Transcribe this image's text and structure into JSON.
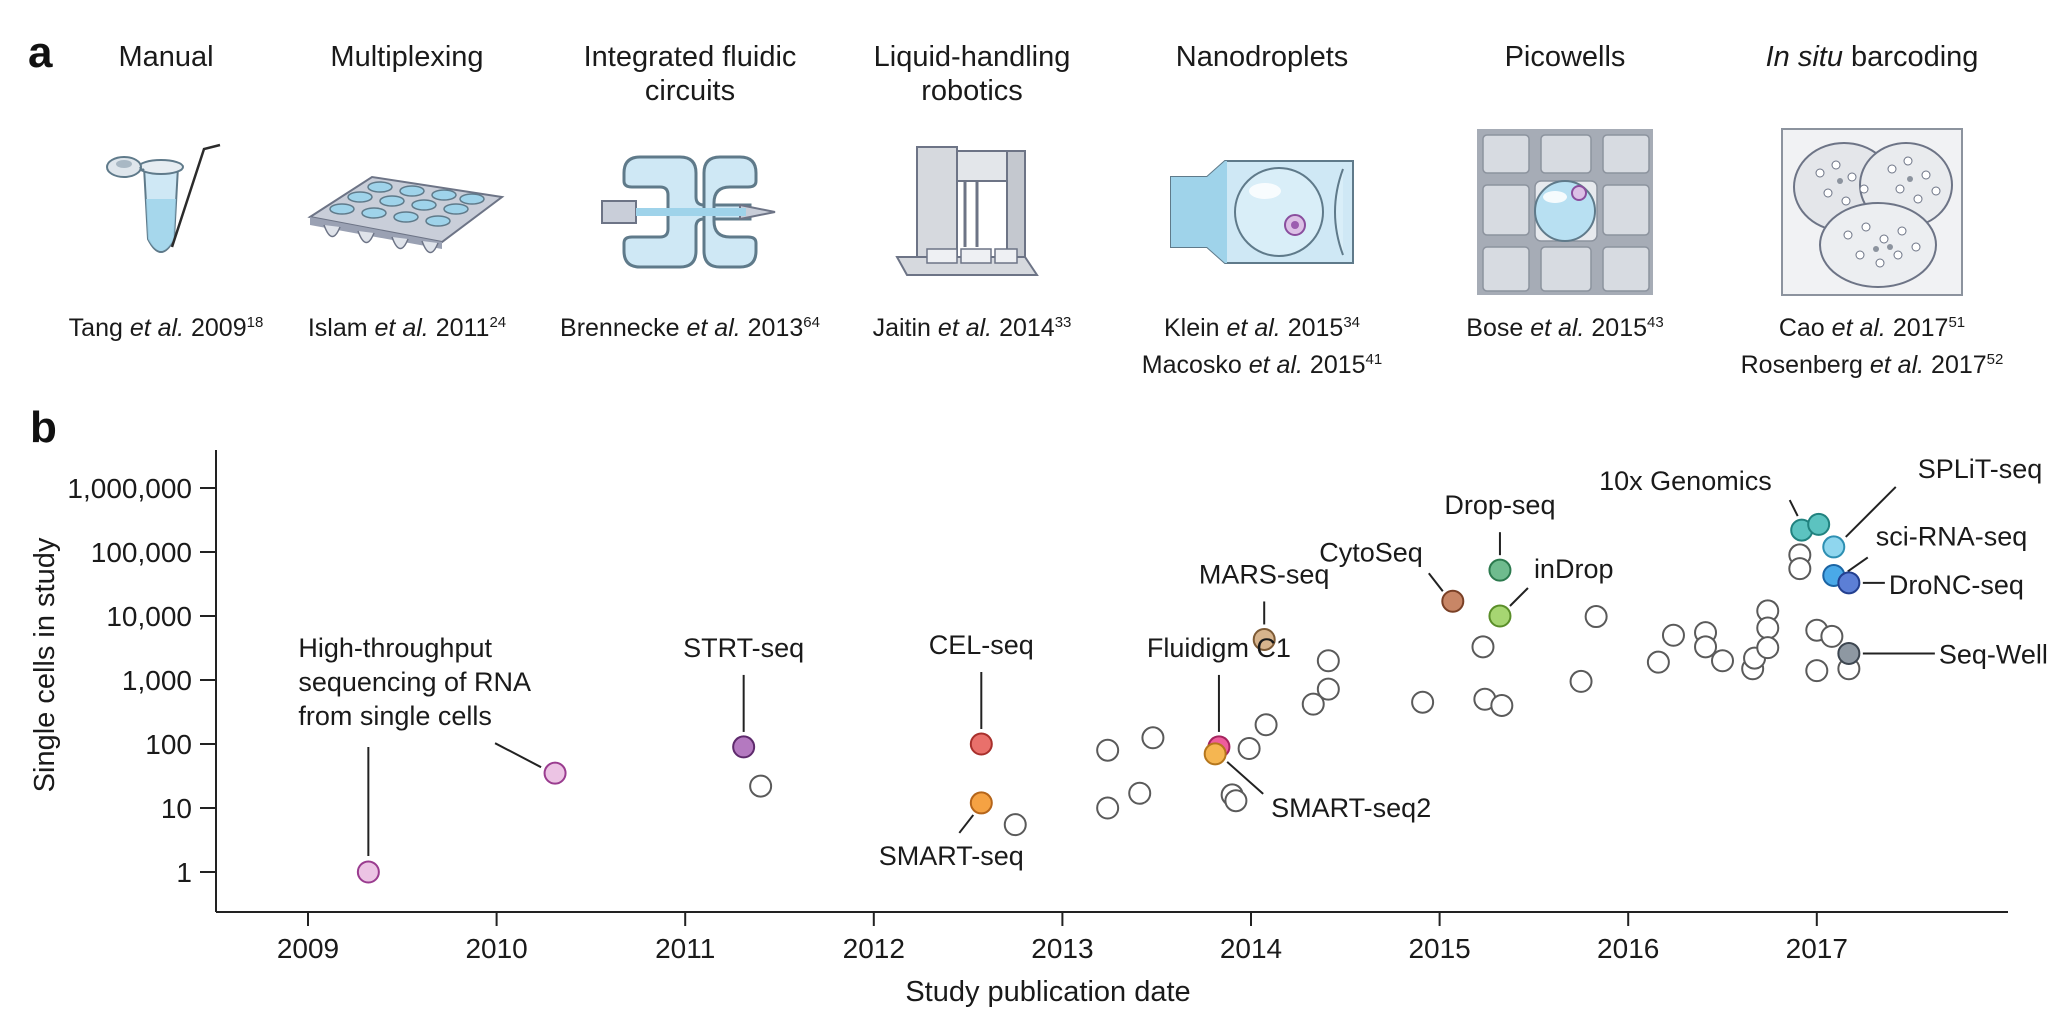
{
  "panel_a": {
    "letter": "a",
    "methods": [
      {
        "title_html": "Manual",
        "icon": "tube-icon",
        "refs": [
          {
            "author": "Tang",
            "etal": "et al.",
            "year": "2009",
            "sup": "18"
          }
        ]
      },
      {
        "title_html": "Multiplexing",
        "icon": "multiwell-plate-icon",
        "refs": [
          {
            "author": "Islam",
            "etal": "et al.",
            "year": "2011",
            "sup": "24"
          }
        ]
      },
      {
        "title_html": "Integrated fluidic<br>circuits",
        "icon": "fluidic-circuit-icon",
        "refs": [
          {
            "author": "Brennecke",
            "etal": "et al.",
            "year": "2013",
            "sup": "64"
          }
        ]
      },
      {
        "title_html": "Liquid-handling<br>robotics",
        "icon": "robot-icon",
        "refs": [
          {
            "author": "Jaitin",
            "etal": "et al.",
            "year": "2014",
            "sup": "33"
          }
        ]
      },
      {
        "title_html": "Nanodroplets",
        "icon": "droplet-channel-icon",
        "refs": [
          {
            "author": "Klein",
            "etal": "et al.",
            "year": "2015",
            "sup": "34"
          },
          {
            "author": "Macosko",
            "etal": "et al.",
            "year": "2015",
            "sup": "41"
          }
        ]
      },
      {
        "title_html": "Picowells",
        "icon": "picowell-icon",
        "refs": [
          {
            "author": "Bose",
            "etal": "et al.",
            "year": "2015",
            "sup": "43"
          }
        ]
      },
      {
        "title_html": "<i>In situ</i> barcoding",
        "icon": "cells-barcoding-icon",
        "refs": [
          {
            "author": "Cao",
            "etal": "et al.",
            "year": "2017",
            "sup": "51"
          },
          {
            "author": "Rosenberg",
            "etal": "et al.",
            "year": "2017",
            "sup": "52"
          }
        ]
      }
    ]
  },
  "chart_data": {
    "panel_letter": "b",
    "type": "scatter",
    "xlabel": "Study publication date",
    "ylabel": "Single cells in study",
    "x_scale": "linear",
    "y_scale": "log",
    "xlim": [
      2008.6,
      2018.1
    ],
    "ylim": [
      0.5,
      3000000
    ],
    "x_ticks": [
      2009,
      2010,
      2011,
      2012,
      2013,
      2014,
      2015,
      2016,
      2017
    ],
    "y_ticks": [
      1,
      10,
      100,
      1000,
      10000,
      100000,
      1000000
    ],
    "y_tick_labels": [
      "1",
      "10",
      "100",
      "1,000",
      "10,000",
      "100,000",
      "1,000,000"
    ],
    "grid": false,
    "colors": {
      "open_marker_fill": "#ffffff",
      "open_marker_stroke": "#5a5a5a",
      "axis": "#222222"
    },
    "highlighted": [
      {
        "label": "High-throughput\nsequencing of RNA\nfrom single cells",
        "x": 2009.32,
        "y": 1,
        "fill": "#ecc4e4",
        "stroke": "#9a3c8f"
      },
      {
        "label": "",
        "x": 2010.31,
        "y": 35,
        "fill": "#ecc4e4",
        "stroke": "#9a3c8f"
      },
      {
        "label": "STRT-seq",
        "x": 2011.31,
        "y": 90,
        "fill": "#b479c0",
        "stroke": "#5e2a6c"
      },
      {
        "label": "CEL-seq",
        "x": 2012.57,
        "y": 100,
        "fill": "#e9706b",
        "stroke": "#a8302c"
      },
      {
        "label": "SMART-seq",
        "x": 2012.57,
        "y": 12,
        "fill": "#f5a243",
        "stroke": "#b5651a"
      },
      {
        "label": "Fluidigm C1",
        "x": 2013.83,
        "y": 90,
        "fill": "#ee5d9c",
        "stroke": "#a5245f"
      },
      {
        "label": "SMART-seq2",
        "x": 2013.81,
        "y": 70,
        "fill": "#f5b651",
        "stroke": "#b5761c"
      },
      {
        "label": "MARS-seq",
        "x": 2014.07,
        "y": 4300,
        "fill": "#d7b48d",
        "stroke": "#7d5a35"
      },
      {
        "label": "CytoSeq",
        "x": 2015.07,
        "y": 17000,
        "fill": "#c88666",
        "stroke": "#7a4026"
      },
      {
        "label": "Drop-seq",
        "x": 2015.32,
        "y": 52000,
        "fill": "#6fbb8e",
        "stroke": "#2c7a4e"
      },
      {
        "label": "inDrop",
        "x": 2015.32,
        "y": 10000,
        "fill": "#a6d672",
        "stroke": "#5a8e29"
      },
      {
        "label": "10x Genomics",
        "x": 2016.92,
        "y": 220000,
        "fill": "#5cc3c0",
        "stroke": "#21827f"
      },
      {
        "label": "",
        "x": 2017.01,
        "y": 270000,
        "fill": "#5cc3c0",
        "stroke": "#21827f"
      },
      {
        "label": "SPLiT-seq",
        "x": 2017.09,
        "y": 120000,
        "fill": "#8fd6ee",
        "stroke": "#2d8fb2"
      },
      {
        "label": "sci-RNA-seq",
        "x": 2017.09,
        "y": 43000,
        "fill": "#4aa9e8",
        "stroke": "#1b64a3"
      },
      {
        "label": "DroNC-seq",
        "x": 2017.17,
        "y": 33000,
        "fill": "#5c7fd6",
        "stroke": "#233f8f"
      },
      {
        "label": "Seq-Well",
        "x": 2017.17,
        "y": 2600,
        "fill": "#8e98a2",
        "stroke": "#3d4650"
      }
    ],
    "other_studies": [
      {
        "x": 2011.4,
        "y": 22
      },
      {
        "x": 2012.75,
        "y": 5.5
      },
      {
        "x": 2013.24,
        "y": 10
      },
      {
        "x": 2013.24,
        "y": 80
      },
      {
        "x": 2013.41,
        "y": 17
      },
      {
        "x": 2013.48,
        "y": 125
      },
      {
        "x": 2013.9,
        "y": 16
      },
      {
        "x": 2013.92,
        "y": 13
      },
      {
        "x": 2013.99,
        "y": 85
      },
      {
        "x": 2014.08,
        "y": 200
      },
      {
        "x": 2014.33,
        "y": 420
      },
      {
        "x": 2014.41,
        "y": 2000
      },
      {
        "x": 2014.41,
        "y": 720
      },
      {
        "x": 2014.91,
        "y": 450
      },
      {
        "x": 2015.23,
        "y": 3300
      },
      {
        "x": 2015.24,
        "y": 500
      },
      {
        "x": 2015.33,
        "y": 400
      },
      {
        "x": 2015.75,
        "y": 950
      },
      {
        "x": 2015.83,
        "y": 9800
      },
      {
        "x": 2016.16,
        "y": 1900
      },
      {
        "x": 2016.24,
        "y": 5000
      },
      {
        "x": 2016.41,
        "y": 5500
      },
      {
        "x": 2016.41,
        "y": 3300
      },
      {
        "x": 2016.5,
        "y": 2000
      },
      {
        "x": 2016.66,
        "y": 1500
      },
      {
        "x": 2016.67,
        "y": 2200
      },
      {
        "x": 2016.74,
        "y": 12000
      },
      {
        "x": 2016.74,
        "y": 6500
      },
      {
        "x": 2016.74,
        "y": 3200
      },
      {
        "x": 2016.91,
        "y": 90000
      },
      {
        "x": 2016.91,
        "y": 55000
      },
      {
        "x": 2017.0,
        "y": 6000
      },
      {
        "x": 2017.0,
        "y": 1400
      },
      {
        "x": 2017.08,
        "y": 4800
      },
      {
        "x": 2017.17,
        "y": 1500
      }
    ]
  }
}
